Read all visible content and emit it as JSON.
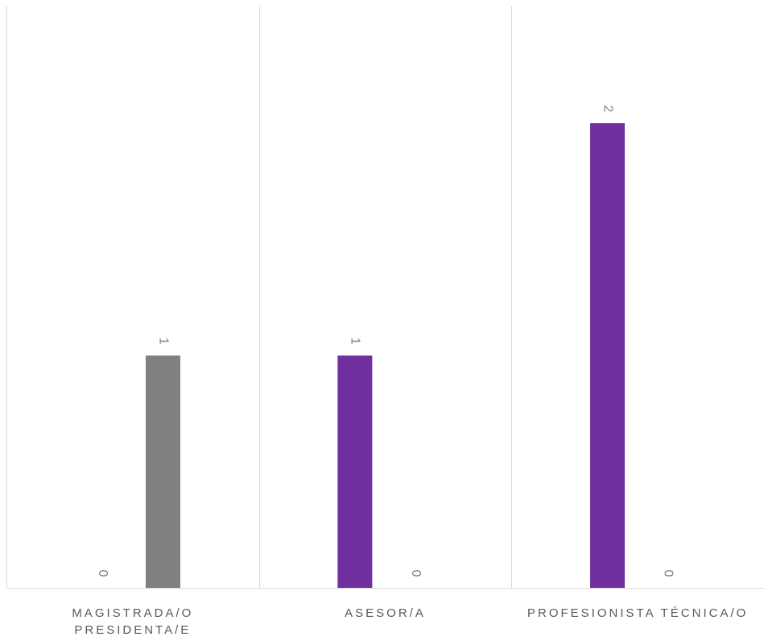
{
  "chart_data": {
    "type": "bar",
    "categories": [
      [
        "MAGISTRADA/O",
        "PRESIDENTA/E"
      ],
      [
        "ASESOR/A"
      ],
      [
        "PROFESIONISTA TÉCNICA/O"
      ]
    ],
    "series": [
      {
        "values": [
          0,
          1,
          2
        ],
        "colors": [
          "#808080",
          "#7030a0",
          "#7030a0"
        ]
      },
      {
        "values": [
          1,
          0,
          0
        ],
        "colors": [
          "#808080",
          "#7030a0",
          "#7030a0"
        ]
      }
    ],
    "bar_colors": [
      [
        "#808080",
        "#808080"
      ],
      [
        "#7030a0",
        "#7030a0"
      ],
      [
        "#7030a0",
        "#7030a0"
      ]
    ],
    "ylim": [
      0,
      2.5
    ],
    "grid": "vertical-category-separators",
    "legend": "none",
    "data_labels": "rotated",
    "title": "",
    "xlabel": "",
    "ylabel": ""
  }
}
